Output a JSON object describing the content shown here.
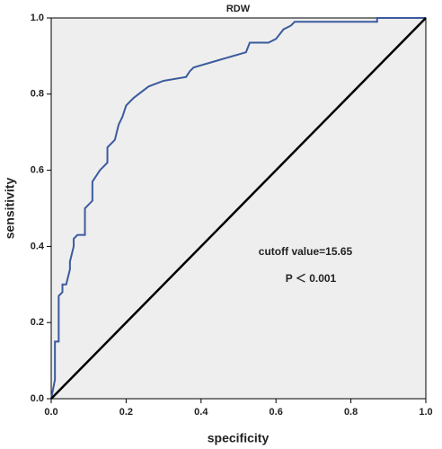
{
  "chart_data": {
    "type": "line",
    "title": "RDW",
    "xlabel": "specificity",
    "ylabel": "sensitivity",
    "annotations": [
      "cutoff value=15.65",
      "P ＜ 0.001"
    ],
    "xlim": [
      0,
      1
    ],
    "ylim": [
      0,
      1
    ],
    "xticks": [
      {
        "value": 0,
        "label": "0.0"
      },
      {
        "value": 0.2,
        "label": "0.2"
      },
      {
        "value": 0.4,
        "label": "0.4"
      },
      {
        "value": 0.6,
        "label": "0.6"
      },
      {
        "value": 0.8,
        "label": "0.8"
      },
      {
        "value": 1,
        "label": "1.0"
      }
    ],
    "yticks": [
      {
        "value": 0,
        "label": "0.0"
      },
      {
        "value": 0.2,
        "label": "0.2"
      },
      {
        "value": 0.4,
        "label": "0.4"
      },
      {
        "value": 0.6,
        "label": "0.6"
      },
      {
        "value": 0.8,
        "label": "0.8"
      },
      {
        "value": 1,
        "label": "1.0"
      }
    ],
    "plot_background": "#eeeeee",
    "series": [
      {
        "color": "#3b5b9e",
        "x": [
          0,
          0.01,
          0.01,
          0.02,
          0.02,
          0.03,
          0.03,
          0.04,
          0.05,
          0.05,
          0.06,
          0.06,
          0.07,
          0.09,
          0.09,
          0.11,
          0.11,
          0.13,
          0.15,
          0.15,
          0.17,
          0.18,
          0.19,
          0.2,
          0.22,
          0.26,
          0.3,
          0.36,
          0.37,
          0.38,
          0.45,
          0.52,
          0.53,
          0.58,
          0.6,
          0.62,
          0.64,
          0.65,
          0.87,
          0.87,
          1.0
        ],
        "values": [
          0,
          0.05,
          0.15,
          0.15,
          0.27,
          0.28,
          0.3,
          0.3,
          0.34,
          0.36,
          0.4,
          0.42,
          0.43,
          0.43,
          0.5,
          0.52,
          0.57,
          0.6,
          0.62,
          0.66,
          0.68,
          0.72,
          0.74,
          0.77,
          0.79,
          0.82,
          0.835,
          0.845,
          0.86,
          0.87,
          0.89,
          0.91,
          0.935,
          0.935,
          0.945,
          0.97,
          0.98,
          0.99,
          0.99,
          1.0,
          1.0
        ]
      },
      {
        "color": "#000000",
        "x": [
          0,
          1
        ],
        "values": [
          0,
          1
        ]
      }
    ]
  }
}
